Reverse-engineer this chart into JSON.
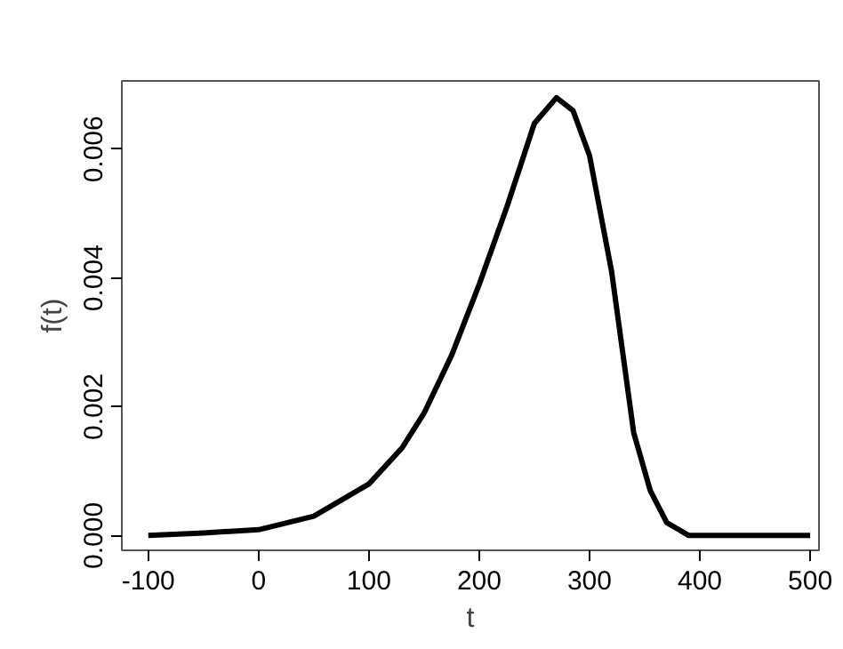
{
  "chart_data": {
    "type": "line",
    "xlabel": "t",
    "ylabel": "f(t)",
    "x": [
      -100,
      -50,
      0,
      50,
      100,
      130,
      150,
      175,
      200,
      225,
      250,
      270,
      285,
      300,
      320,
      340,
      355,
      370,
      390,
      450,
      500
    ],
    "series": [
      {
        "color": "#000000",
        "values": [
          0.0,
          4e-05,
          9e-05,
          0.0003,
          0.0008,
          0.00136,
          0.0019,
          0.0028,
          0.0039,
          0.0051,
          0.0064,
          0.0068,
          0.0066,
          0.0059,
          0.0041,
          0.0016,
          0.0007,
          0.0002,
          0.0,
          0.0,
          0.0
        ]
      }
    ],
    "xlim": [
      -124,
      508
    ],
    "ylim": [
      -0.00023,
      0.00706
    ],
    "xticks": [
      -100,
      0,
      100,
      200,
      300,
      400,
      500
    ],
    "yticks": [
      {
        "value": 0,
        "label": "0.000"
      },
      {
        "value": 0.002,
        "label": "0.002"
      },
      {
        "value": 0.004,
        "label": "0.004"
      },
      {
        "value": 0.006,
        "label": "0.006"
      }
    ],
    "grid": false
  }
}
